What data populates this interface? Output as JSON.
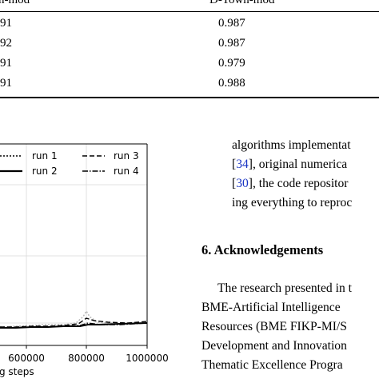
{
  "table": {
    "header_left": "n-mod",
    "header_right": "D-Town-mod",
    "rows": [
      {
        "left": "91",
        "right": "0.987"
      },
      {
        "left": "92",
        "right": "0.987"
      },
      {
        "left": "91",
        "right": "0.979"
      },
      {
        "left": "91",
        "right": "0.988"
      }
    ]
  },
  "chart_data": {
    "type": "line",
    "xlabel": "g steps",
    "x_ticks": [
      "600000",
      "800000",
      "1000000"
    ],
    "legend": {
      "placement": "top",
      "entries": [
        {
          "label": "run 1",
          "style": "dotted"
        },
        {
          "label": "run 3",
          "style": "dashed"
        },
        {
          "label": "run 2",
          "style": "solid"
        },
        {
          "label": "run 4",
          "style": "dashdot"
        }
      ]
    },
    "grid": true
  },
  "text": {
    "lines": [
      {
        "pre": "algorithms implementat",
        "cite": "",
        "post": ""
      },
      {
        "pre": "[",
        "cite": "34",
        "post": "], original numerica"
      },
      {
        "pre": "[",
        "cite": "30",
        "post": "], the code repositor"
      },
      {
        "pre": "ing everything to reproc",
        "cite": "",
        "post": ""
      }
    ],
    "section_heading": "6.  Acknowledgements",
    "ack_lines": [
      "The research presented in t",
      "BME-Artificial Intelligence",
      "Resources (BME FIKP-MI/S",
      "Development and Innovation",
      "Thematic Excellence Progra"
    ]
  },
  "colors": {
    "citation": "#1a35c4"
  }
}
